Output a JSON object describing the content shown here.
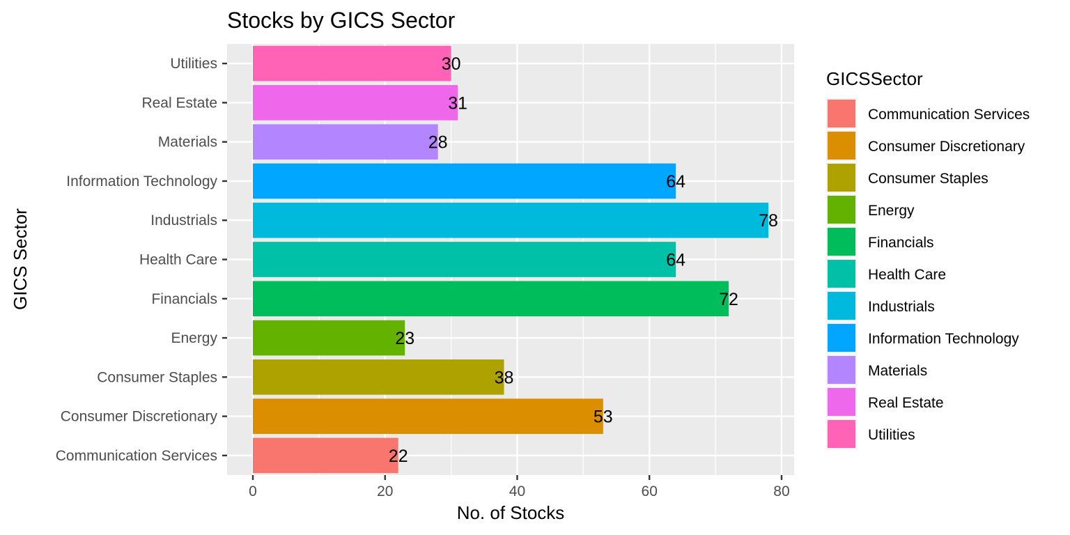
{
  "chart_data": {
    "type": "bar",
    "orientation": "horizontal",
    "title": "Stocks by GICS Sector",
    "xlabel": "No. of Stocks",
    "ylabel": "GICS Sector",
    "xlim": [
      -3.9,
      81.9
    ],
    "x_ticks": [
      0,
      20,
      40,
      60,
      80
    ],
    "grid": true,
    "categories": [
      "Communication Services",
      "Consumer Discretionary",
      "Consumer Staples",
      "Energy",
      "Financials",
      "Health Care",
      "Industrials",
      "Information Technology",
      "Materials",
      "Real Estate",
      "Utilities"
    ],
    "values": [
      22,
      53,
      38,
      23,
      72,
      64,
      78,
      64,
      28,
      31,
      30
    ],
    "colors": [
      "#F8766D",
      "#DB8E00",
      "#AEA200",
      "#64B200",
      "#00BD5C",
      "#00C1A7",
      "#00BADE",
      "#00A6FF",
      "#B385FF",
      "#EF67EB",
      "#FF63B6"
    ],
    "legend": {
      "title": "GICSSector",
      "position": "right"
    }
  }
}
